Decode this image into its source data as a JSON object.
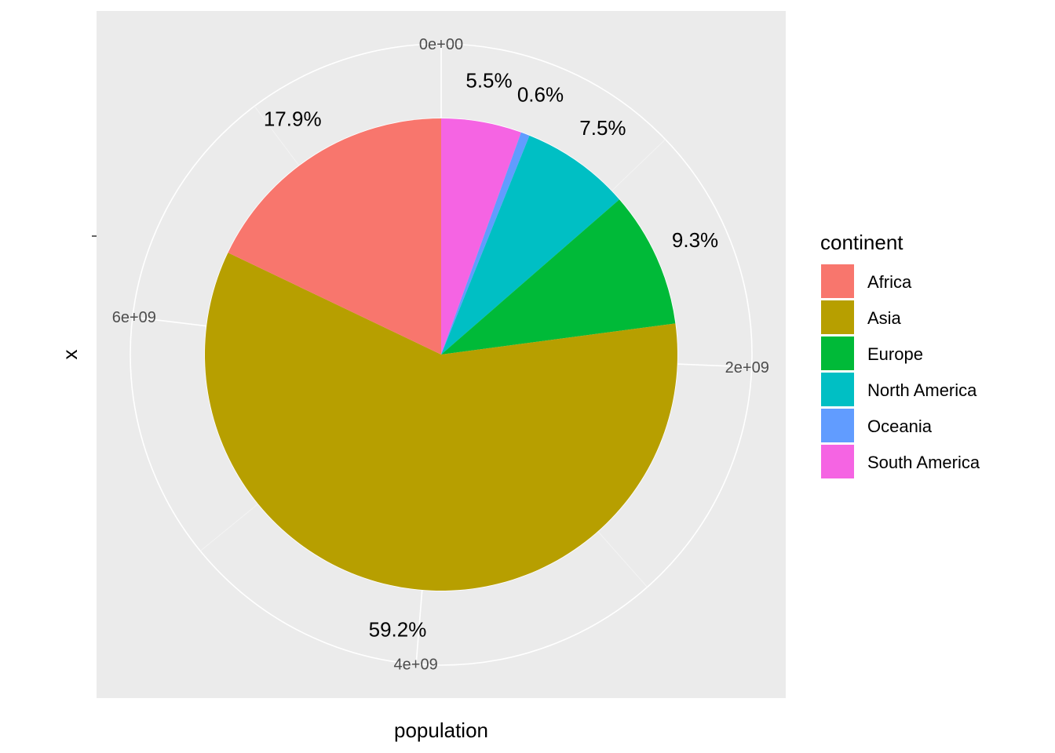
{
  "chart_data": {
    "type": "pie",
    "coord": "polar",
    "xlabel": "population",
    "ylabel": "x",
    "theta_ticks": [
      {
        "value": 0,
        "label": "0e+00"
      },
      {
        "value": 2000000000,
        "label": "2e+09"
      },
      {
        "value": 4000000000,
        "label": "4e+09"
      },
      {
        "value": 6000000000,
        "label": "6e+09"
      }
    ],
    "legend": {
      "title": "continent",
      "position": "right"
    },
    "slices": [
      {
        "category": "South America",
        "value": 428800000,
        "label": "5.5%",
        "color": "#F564E3"
      },
      {
        "category": "Oceania",
        "value": 46800000,
        "label": "0.6%",
        "color": "#619CFF"
      },
      {
        "category": "North America",
        "value": 585000000,
        "label": "7.5%",
        "color": "#00BFC4"
      },
      {
        "category": "Europe",
        "value": 725400000,
        "label": "9.3%",
        "color": "#00BA38"
      },
      {
        "category": "Asia",
        "value": 4617600000,
        "label": "59.2%",
        "color": "#B79F00"
      },
      {
        "category": "Africa",
        "value": 1396200000,
        "label": "17.9%",
        "color": "#F8766D"
      }
    ],
    "legend_order": [
      "Africa",
      "Asia",
      "Europe",
      "North America",
      "Oceania",
      "South America"
    ],
    "grid": true,
    "panel_background": "#EBEBEB",
    "grid_color": "#FFFFFF"
  }
}
